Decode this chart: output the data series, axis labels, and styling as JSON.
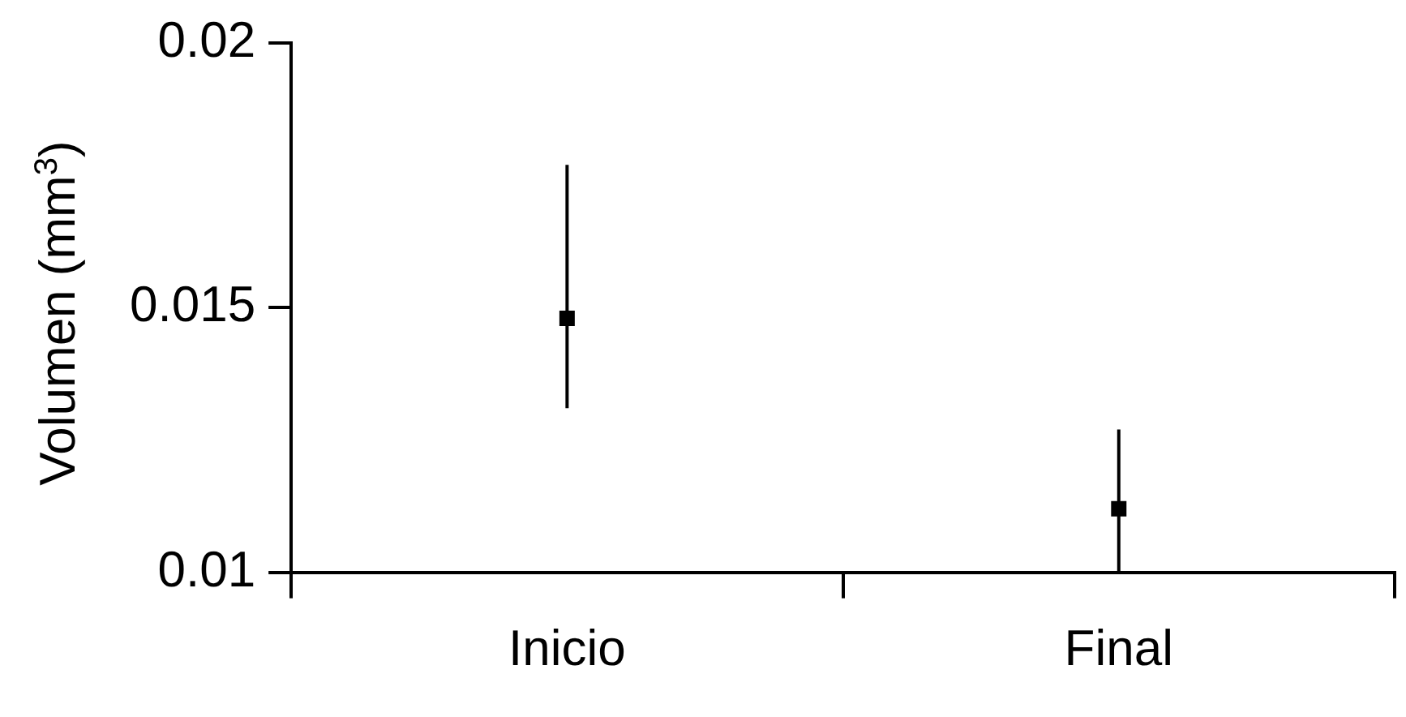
{
  "chart_data": {
    "type": "scatter",
    "ylabel": "Volumen (mm$^{3}$)",
    "categories": [
      "Inicio",
      "Final"
    ],
    "series": [
      {
        "color": "#000000",
        "values": [
          0.0148,
          0.0112
        ],
        "errors": [
          [
            0.0131,
            0.0177
          ],
          [
            0.01,
            0.0127
          ]
        ]
      }
    ],
    "ylim": [
      0.01,
      0.02
    ],
    "yticks": [
      0.01,
      0.015,
      0.02
    ],
    "grid": false,
    "legend": false,
    "marker": "square"
  }
}
